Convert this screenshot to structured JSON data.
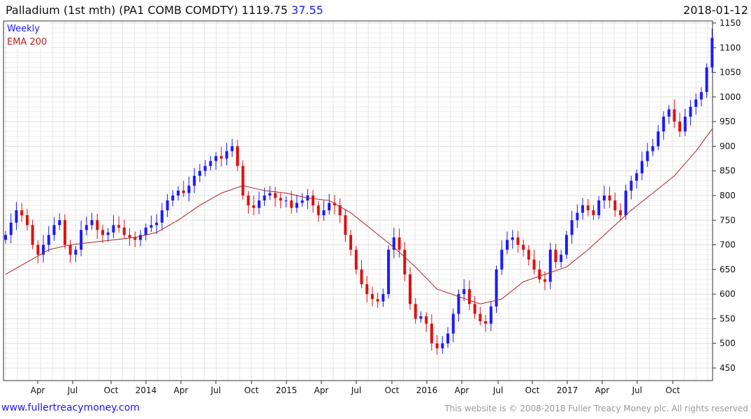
{
  "header": {
    "title": "Palladium (1st mth)  (PA1 COMB COMDTY) 1119.75",
    "change": "37.55",
    "date": "2018-01-12"
  },
  "legend": {
    "period": "Weekly",
    "ema": "EMA 200"
  },
  "footer": {
    "site": "www.fullertreacymoney.com",
    "copyright": "This website is © 2008-2018 Fuller Treacy Money plc. All rights reserved"
  },
  "colors": {
    "up": "#1a1aff",
    "down": "#e01010",
    "ema": "#b22222"
  },
  "chart_data": {
    "type": "candlestick",
    "title": "Palladium (1st mth) (PA1 COMB COMDTY)",
    "interval": "Weekly (sampled every 2 weeks)",
    "start": "2013-01-04",
    "ylim": [
      440,
      1150
    ],
    "yticks": [
      450,
      500,
      550,
      600,
      650,
      700,
      750,
      800,
      850,
      900,
      950,
      1000,
      1050,
      1100,
      1150
    ],
    "xticks": [
      "Apr",
      "Jul",
      "Oct",
      "2014",
      "Apr",
      "Jul",
      "Oct",
      "2015",
      "Apr",
      "Jul",
      "Oct",
      "2016",
      "Apr",
      "Jul",
      "Oct",
      "2017",
      "Apr",
      "Jul",
      "Oct"
    ],
    "closes": [
      720,
      745,
      770,
      760,
      740,
      700,
      680,
      700,
      720,
      740,
      750,
      700,
      680,
      690,
      730,
      740,
      750,
      730,
      720,
      725,
      740,
      735,
      720,
      715,
      710,
      720,
      735,
      740,
      745,
      770,
      790,
      800,
      810,
      805,
      820,
      840,
      850,
      860,
      870,
      880,
      875,
      890,
      900,
      860,
      800,
      780,
      775,
      790,
      800,
      805,
      795,
      790,
      790,
      775,
      785,
      790,
      800,
      780,
      760,
      770,
      785,
      780,
      760,
      720,
      690,
      650,
      620,
      600,
      590,
      585,
      600,
      690,
      715,
      690,
      640,
      580,
      550,
      555,
      540,
      500,
      490,
      500,
      520,
      560,
      600,
      610,
      580,
      560,
      545,
      540,
      575,
      650,
      690,
      710,
      715,
      700,
      690,
      670,
      650,
      630,
      625,
      690,
      665,
      680,
      720,
      750,
      765,
      780,
      770,
      760,
      790,
      800,
      790,
      770,
      760,
      810,
      830,
      845,
      870,
      890,
      900,
      930,
      960,
      975,
      950,
      930,
      960,
      980,
      995,
      1010,
      1060,
      1119.75
    ],
    "ema_200_every_8_weeks": [
      640,
      665,
      690,
      700,
      705,
      710,
      715,
      725,
      750,
      780,
      805,
      820,
      810,
      805,
      795,
      790,
      765,
      730,
      695,
      655,
      610,
      595,
      580,
      590,
      625,
      640,
      655,
      690,
      730,
      770,
      805,
      840,
      890
    ],
    "ema_200_last": 935,
    "last_close": 1119.75
  }
}
